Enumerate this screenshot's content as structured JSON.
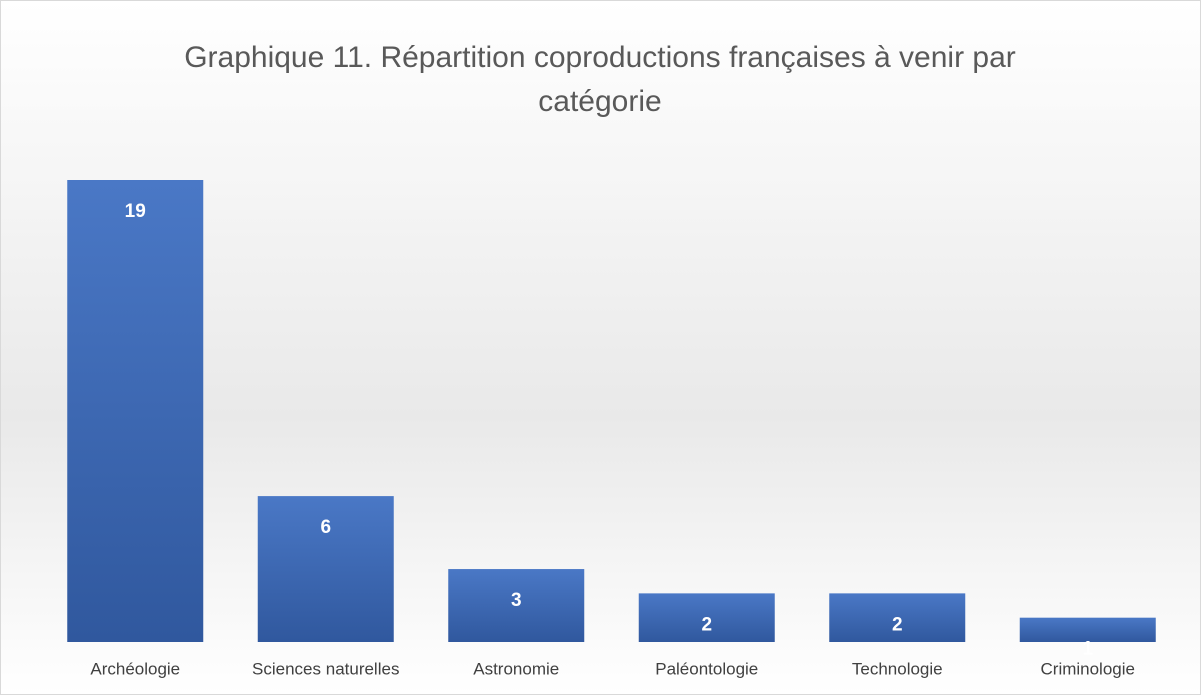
{
  "chart_data": {
    "type": "bar",
    "title": "Graphique 11. Répartition coproductions françaises à venir par catégorie",
    "categories": [
      "Archéologie",
      "Sciences naturelles",
      "Astronomie",
      "Paléontologie",
      "Technologie",
      "Criminologie"
    ],
    "values": [
      19,
      6,
      3,
      2,
      2,
      1
    ],
    "color": "#4472c4"
  }
}
